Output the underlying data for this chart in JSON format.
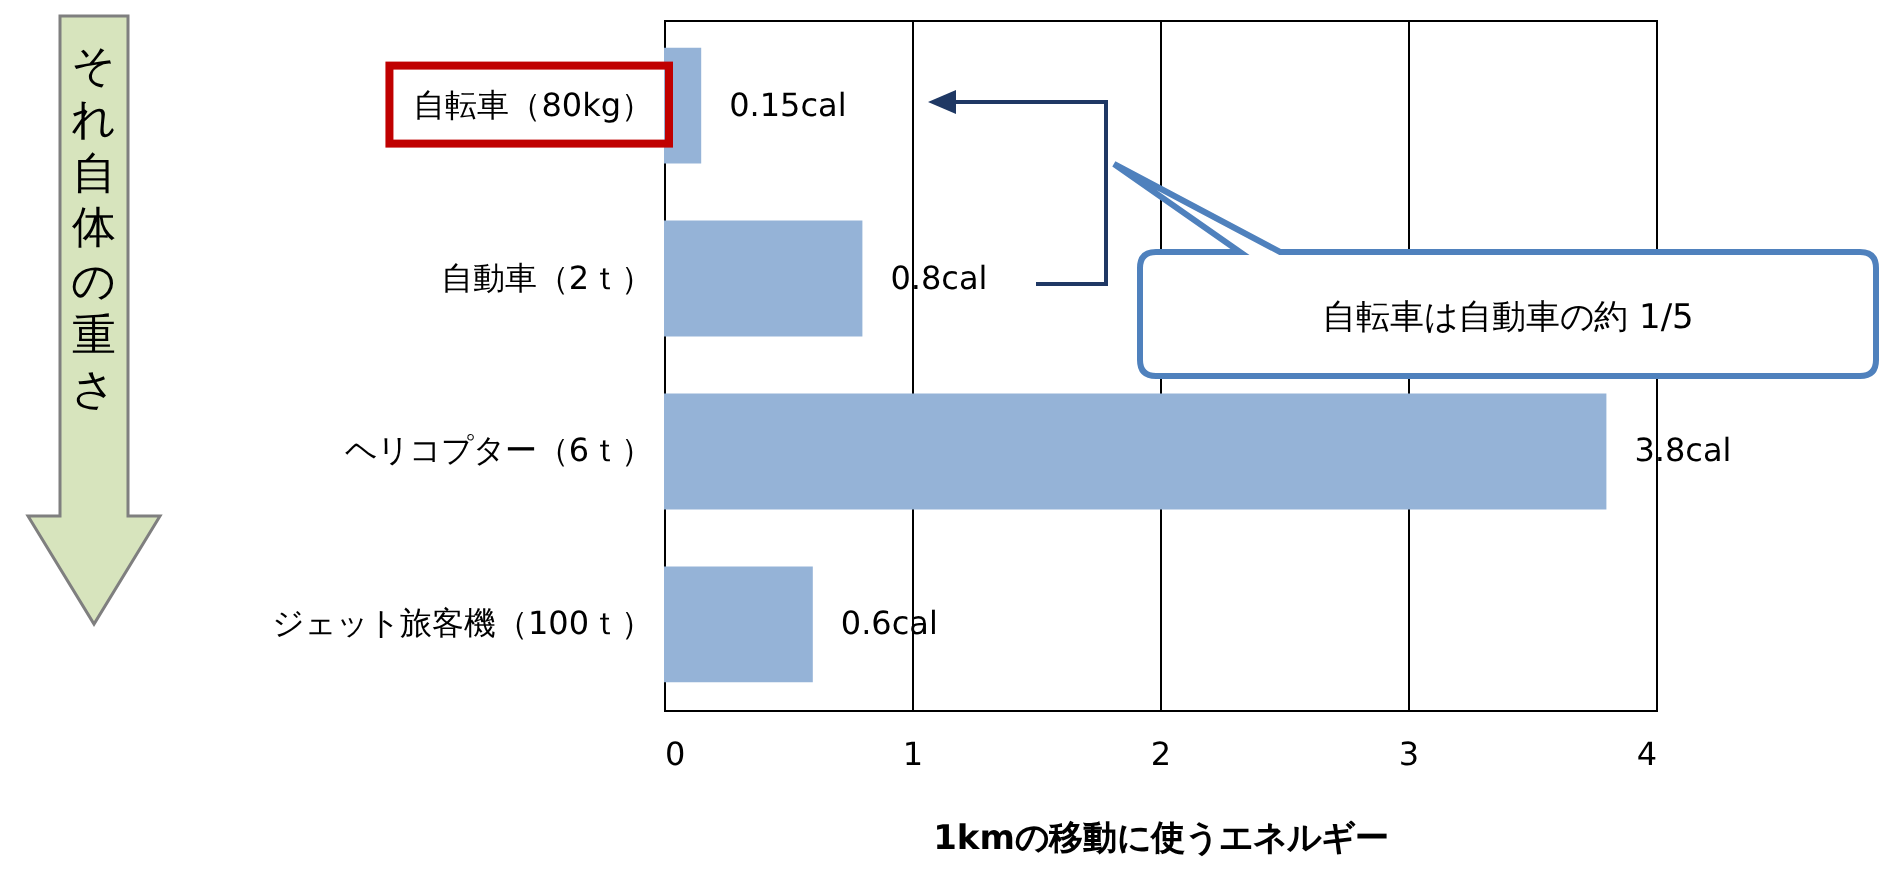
{
  "chart_data": {
    "type": "bar",
    "orientation": "horizontal",
    "categories": [
      "自転車（80kg）",
      "自動車（2ｔ）",
      "ヘリコプター（6ｔ）",
      "ジェット旅客機（100ｔ）"
    ],
    "values": [
      0.15,
      0.8,
      3.8,
      0.6
    ],
    "value_labels": [
      "0.15cal",
      "0.8cal",
      "3.8cal",
      "0.6cal"
    ],
    "color": "#95b3d7",
    "xlim": [
      0,
      4
    ],
    "xticks": [
      0,
      1,
      2,
      3,
      4
    ],
    "grid": "x",
    "xlabel": "1kmの移動に使うエネルギー",
    "ylabel": "それ自体の重さ",
    "annotations": [
      "自転車は自動車の約 1/5"
    ]
  }
}
